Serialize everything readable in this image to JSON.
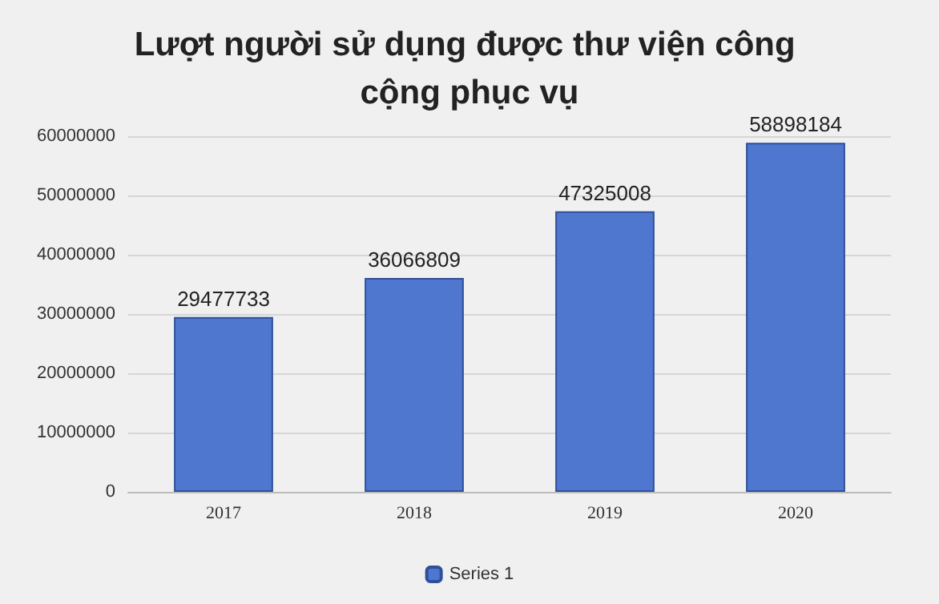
{
  "chart_data": {
    "type": "bar",
    "title": "Lượt người sử dụng được thư viện công cộng phục vụ",
    "categories": [
      "2017",
      "2018",
      "2019",
      "2020"
    ],
    "series": [
      {
        "name": "Series 1",
        "color": "#4f77d0",
        "values": [
          29477733,
          36066809,
          47325008,
          58898184
        ]
      }
    ],
    "ylim": [
      0,
      60000000
    ],
    "yticks": [
      0,
      10000000,
      20000000,
      30000000,
      40000000,
      50000000,
      60000000
    ],
    "grid": "y",
    "legend": "bottom",
    "data_labels": true
  }
}
